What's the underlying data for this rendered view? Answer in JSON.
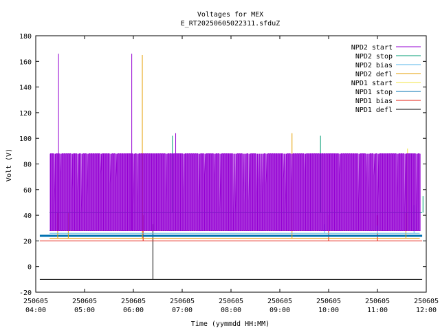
{
  "chart_data": {
    "type": "line",
    "title": "Voltages for MEX",
    "subtitle": "E_RT20250605022311.sfduZ",
    "xlabel": "Time (yymmdd HH:MM)",
    "ylabel": "Volt (V)",
    "ylim": [
      -20,
      180
    ],
    "yticks": [
      -20,
      0,
      20,
      40,
      60,
      80,
      100,
      120,
      140,
      160,
      180
    ],
    "xlim": [
      "250605 04:00",
      "250605 12:00"
    ],
    "xticks": [
      {
        "date": "250605",
        "time": "04:00"
      },
      {
        "date": "250605",
        "time": "05:00"
      },
      {
        "date": "250605",
        "time": "06:00"
      },
      {
        "date": "250605",
        "time": "07:00"
      },
      {
        "date": "250605",
        "time": "08:00"
      },
      {
        "date": "250605",
        "time": "09:00"
      },
      {
        "date": "250605",
        "time": "10:00"
      },
      {
        "date": "250605",
        "time": "11:00"
      },
      {
        "date": "250605",
        "time": "12:00"
      }
    ],
    "legend_position": "top-right",
    "series": [
      {
        "name": "NPD2 start",
        "color": "#9400d3",
        "time_range": [
          "04:17",
          "11:52"
        ],
        "baseline": 28,
        "high": 88,
        "style": "dense-toggle",
        "spikes": [
          {
            "time": "04:28",
            "value": 166
          },
          {
            "time": "05:58",
            "value": 166
          },
          {
            "time": "06:52",
            "value": 104
          }
        ]
      },
      {
        "name": "NPD2 stop",
        "color": "#009e73",
        "time_range": [
          "04:17",
          "11:55"
        ],
        "baseline": 42,
        "style": "flat",
        "spikes": [
          {
            "time": "06:48",
            "value": 102
          },
          {
            "time": "09:50",
            "value": 102
          },
          {
            "time": "11:56",
            "value": 55
          }
        ]
      },
      {
        "name": "NPD2 bias",
        "color": "#56b4e9",
        "time_range": [
          "04:17",
          "11:52"
        ],
        "baseline": 26,
        "style": "flat",
        "spikes": [
          {
            "time": "09:55",
            "value": 33
          },
          {
            "time": "11:00",
            "value": 32
          },
          {
            "time": "11:45",
            "value": 48
          }
        ]
      },
      {
        "name": "NPD2 defl",
        "color": "#e69f00",
        "time_range": [
          "04:17",
          "11:52"
        ],
        "baseline": 22,
        "style": "flat",
        "spikes": [
          {
            "time": "04:27",
            "value": 42
          },
          {
            "time": "04:40",
            "value": 42
          },
          {
            "time": "06:11",
            "value": 165
          },
          {
            "time": "09:15",
            "value": 104
          },
          {
            "time": "11:35",
            "value": 42
          }
        ]
      },
      {
        "name": "NPD1 start",
        "color": "#f0e442",
        "time_range": [
          "04:17",
          "11:52"
        ],
        "baseline": 28,
        "style": "flat",
        "spikes": [
          {
            "time": "11:37",
            "value": 92
          }
        ]
      },
      {
        "name": "NPD1 stop",
        "color": "#0072b2",
        "time_range": [
          "04:05",
          "11:55"
        ],
        "baseline": 24,
        "style": "flat",
        "spikes": []
      },
      {
        "name": "NPD1 bias",
        "color": "#e51e10",
        "time_range": [
          "04:05",
          "11:55"
        ],
        "baseline": 20,
        "style": "flat",
        "spikes": [
          {
            "time": "06:12",
            "value": 40
          },
          {
            "time": "10:00",
            "value": 40
          },
          {
            "time": "11:00",
            "value": 40
          }
        ]
      },
      {
        "name": "NPD1 defl",
        "color": "#000000",
        "time_range": [
          "04:05",
          "11:55"
        ],
        "baseline": -10,
        "style": "flat",
        "spikes": [
          {
            "time": "06:24",
            "value": 33
          }
        ]
      }
    ]
  }
}
